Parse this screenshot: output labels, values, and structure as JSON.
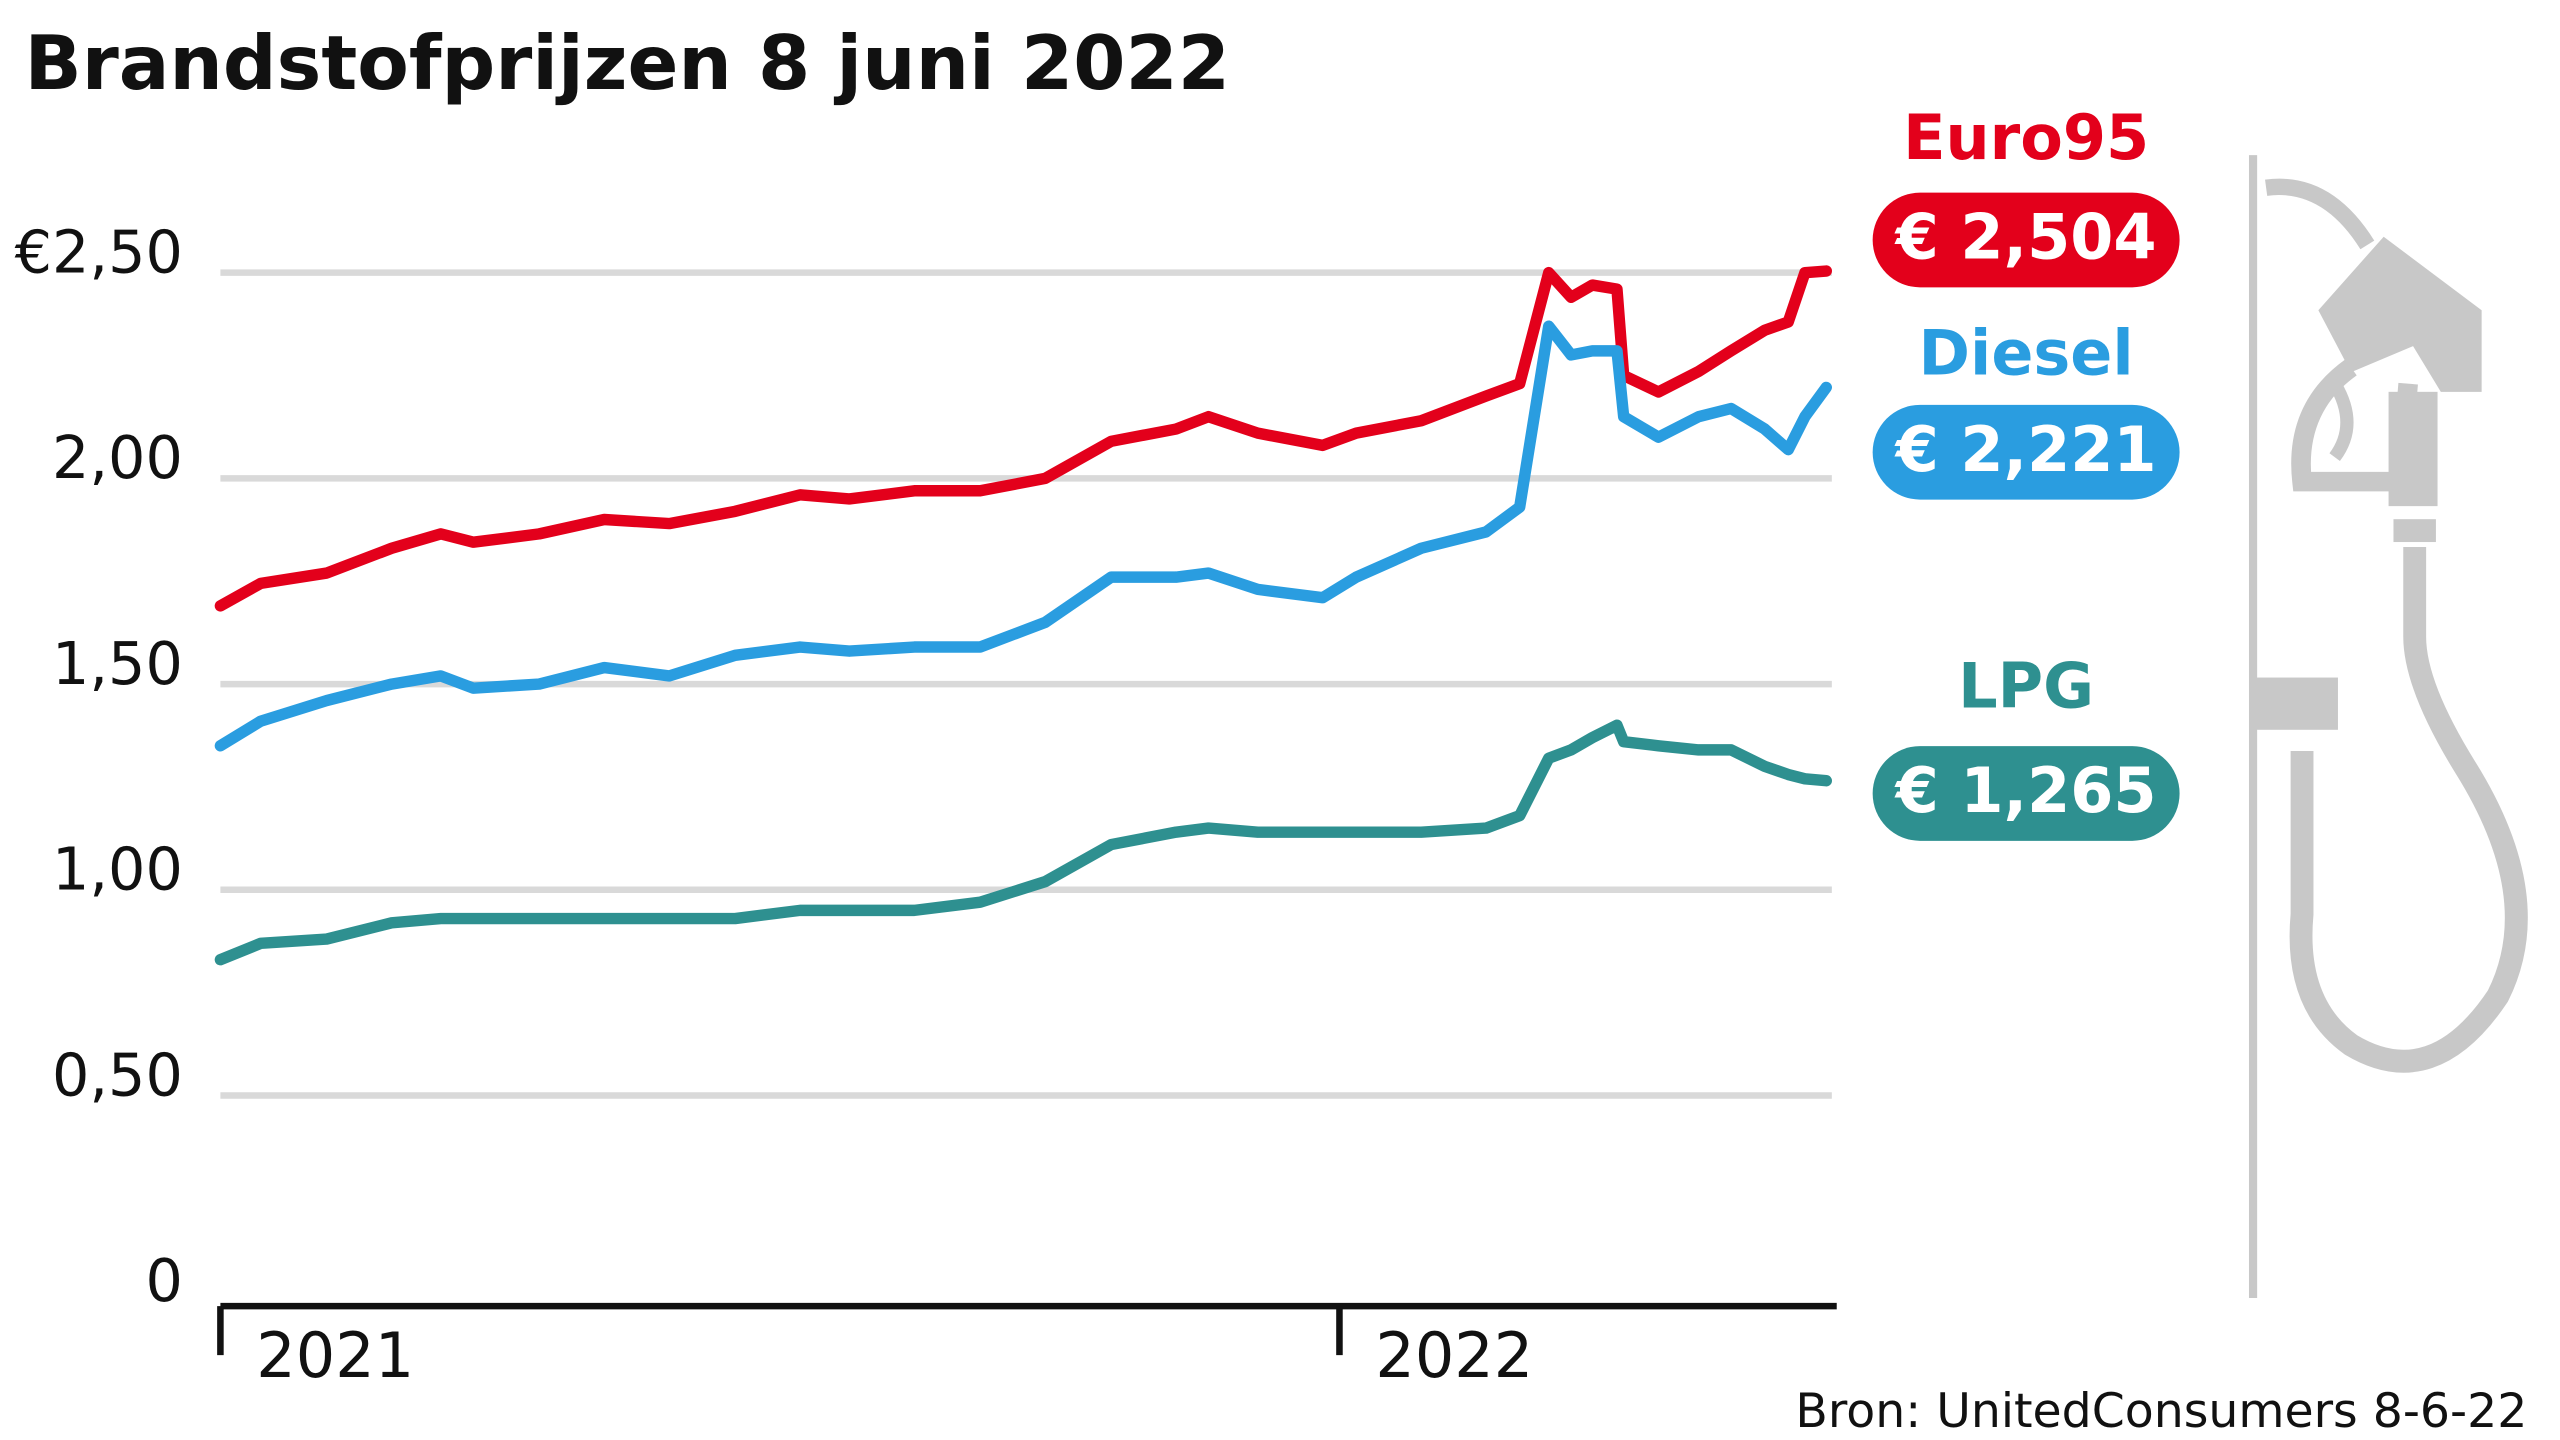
{
  "chart_data": {
    "type": "line",
    "title": "Brandstofprijzen 8 juni 2022",
    "source": "Bron: UnitedConsumers 8-6-22",
    "x": [
      2021.0,
      2021.036,
      2021.095,
      2021.153,
      2021.197,
      2021.226,
      2021.285,
      2021.343,
      2021.401,
      2021.46,
      2021.518,
      2021.562,
      2021.62,
      2021.679,
      2021.737,
      2021.796,
      2021.854,
      2021.883,
      2021.927,
      2021.985,
      2022.015,
      2022.073,
      2022.131,
      2022.161,
      2022.187,
      2022.207,
      2022.226,
      2022.248,
      2022.254,
      2022.285,
      2022.321,
      2022.35,
      2022.38,
      2022.401,
      2022.416,
      2022.435
    ],
    "xlim": [
      2021,
      2022.44
    ],
    "xticks": [
      2021,
      2022
    ],
    "ylim": [
      0,
      2.5
    ],
    "yticks": [
      0,
      {
        "value": 0.5,
        "label": "0,50"
      },
      {
        "value": 1,
        "label": "1,00"
      },
      {
        "value": 1.5,
        "label": "1,50"
      },
      {
        "value": 2,
        "label": "2,00"
      },
      {
        "value": 2.5,
        "label": "€2,50"
      }
    ],
    "grid": true,
    "series": [
      {
        "name": "Euro95",
        "color": "#e3001b",
        "values": [
          1.69,
          1.745,
          1.77,
          1.83,
          1.865,
          1.845,
          1.865,
          1.9,
          1.89,
          1.92,
          1.96,
          1.95,
          1.97,
          1.97,
          2.0,
          2.09,
          2.12,
          2.15,
          2.11,
          2.08,
          2.11,
          2.14,
          2.2,
          2.23,
          2.5,
          2.44,
          2.47,
          2.46,
          2.25,
          2.21,
          2.26,
          2.31,
          2.36,
          2.38,
          2.5,
          2.504
        ],
        "value_labels": [
          null,
          null,
          null,
          null,
          null,
          null,
          null,
          null,
          null,
          null,
          null,
          null,
          null,
          null,
          null,
          null,
          null,
          null,
          null,
          null,
          null,
          null,
          null,
          null,
          null,
          null,
          null,
          null,
          null,
          null,
          null,
          null,
          null,
          null,
          null,
          "€ 2,504"
        ]
      },
      {
        "name": "Diesel",
        "color": "#2a9de0",
        "values": [
          1.35,
          1.41,
          1.46,
          1.5,
          1.52,
          1.49,
          1.5,
          1.54,
          1.52,
          1.57,
          1.59,
          1.58,
          1.59,
          1.59,
          1.65,
          1.76,
          1.76,
          1.77,
          1.73,
          1.71,
          1.76,
          1.83,
          1.87,
          1.93,
          2.37,
          2.3,
          2.31,
          2.31,
          2.15,
          2.1,
          2.15,
          2.17,
          2.12,
          2.07,
          2.15,
          2.221
        ],
        "value_labels": [
          null,
          null,
          null,
          null,
          null,
          null,
          null,
          null,
          null,
          null,
          null,
          null,
          null,
          null,
          null,
          null,
          null,
          null,
          null,
          null,
          null,
          null,
          null,
          null,
          null,
          null,
          null,
          null,
          null,
          null,
          null,
          null,
          null,
          null,
          null,
          "€ 2,221"
        ]
      },
      {
        "name": "LPG",
        "color": "#2e9090",
        "values": [
          0.83,
          0.87,
          0.88,
          0.92,
          0.93,
          0.93,
          0.93,
          0.93,
          0.93,
          0.93,
          0.95,
          0.95,
          0.95,
          0.97,
          1.02,
          1.11,
          1.14,
          1.15,
          1.14,
          1.14,
          1.14,
          1.14,
          1.15,
          1.18,
          1.32,
          1.34,
          1.37,
          1.4,
          1.36,
          1.35,
          1.34,
          1.34,
          1.3,
          1.28,
          1.27,
          1.265
        ],
        "value_labels": [
          null,
          null,
          null,
          null,
          null,
          null,
          null,
          null,
          null,
          null,
          null,
          null,
          null,
          null,
          null,
          null,
          null,
          null,
          null,
          null,
          null,
          null,
          null,
          null,
          null,
          null,
          null,
          null,
          null,
          null,
          null,
          null,
          null,
          null,
          null,
          "€ 1,265"
        ]
      }
    ]
  }
}
